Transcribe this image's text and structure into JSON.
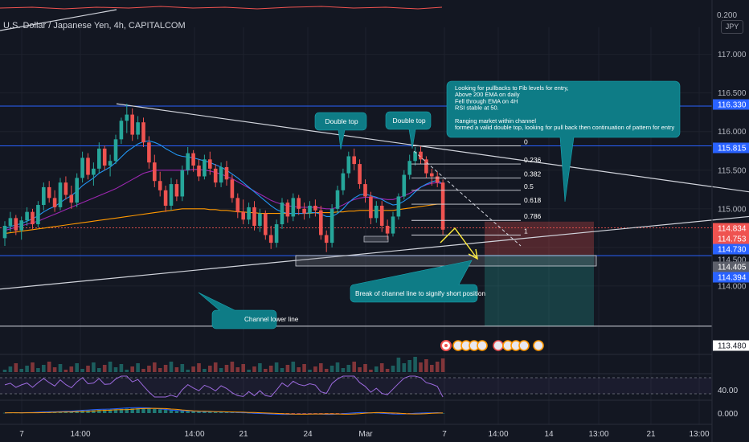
{
  "header": {
    "title": "U.S. Dollar / Japanese Yen, 4h, CAPITALCOM",
    "currency": "JPY"
  },
  "colors": {
    "background": "#131722",
    "up": "#26a69a",
    "down": "#ef5350",
    "annotation": "#0e7c86",
    "blue_line": "#2962ff",
    "ema_orange": "#ff9800",
    "ema_blue": "#2196f3",
    "ema_purple": "#9c27b0"
  },
  "chart_data": {
    "type": "candlestick",
    "symbol": "U.S. Dollar / Japanese Yen",
    "timeframe": "4h",
    "ylim": [
      113.25,
      117.35
    ],
    "price_axis_labels": [
      "117.000",
      "116.500",
      "116.000",
      "115.500",
      "115.000",
      "114.500",
      "114.000"
    ],
    "x_axis_labels": [
      "7",
      "14:00",
      "14:00",
      "21",
      "24",
      "Mar",
      "7",
      "14:00",
      "14",
      "13:00",
      "21",
      "13:00"
    ],
    "top_panel_label": "0.200",
    "rsi_axis_label": "40.00",
    "macd_axis_label": "0.000",
    "price_badges": [
      {
        "value": "116.330",
        "style": "blue"
      },
      {
        "value": "115.815",
        "style": "blue"
      },
      {
        "value": "114.834",
        "style": "red"
      },
      {
        "value": "114.753",
        "style": "red"
      },
      {
        "value": "114.730",
        "style": "blue"
      },
      {
        "value": "114.500",
        "style": "plain"
      },
      {
        "value": "114.405",
        "style": "gray"
      },
      {
        "value": "114.394",
        "style": "blue"
      },
      {
        "value": "113.480",
        "style": "white"
      }
    ],
    "horizontal_levels": [
      116.33,
      115.815,
      114.394,
      113.48
    ],
    "fib_levels": [
      {
        "label": "0",
        "value": 115.815
      },
      {
        "label": "0.236",
        "value": 115.58
      },
      {
        "label": "0.382",
        "value": 115.4
      },
      {
        "label": "0.5",
        "value": 115.24
      },
      {
        "label": "0.618",
        "value": 115.06
      },
      {
        "label": "0.786",
        "value": 114.85
      },
      {
        "label": "1",
        "value": 114.66
      }
    ],
    "trendlines": [
      {
        "name": "channel-upper",
        "from": [
          145,
          116.36
        ],
        "to": [
          932,
          115.22
        ]
      },
      {
        "name": "channel-lower",
        "from": [
          0,
          113.96
        ],
        "to": [
          932,
          114.9
        ]
      }
    ],
    "position": {
      "entry": 114.405,
      "stop": 114.834,
      "target": 113.48
    },
    "annotations": [
      {
        "name": "double-top-1",
        "text": "Double top"
      },
      {
        "name": "double-top-2",
        "text": "Double top"
      },
      {
        "name": "analysis-note",
        "lines": [
          "Looking for pullbacks to Fib levels for entry,",
          "Above 200 EMA on daily",
          "Fell through EMA on 4H",
          "RSI stable at 50.",
          "",
          "Ranging market within channel",
          "formed a valid double top, looking for pull back then continuation of pattern for entry"
        ]
      },
      {
        "name": "break-note",
        "text": "Break of channel line to signify short position"
      },
      {
        "name": "channel-lower-note",
        "text": "Channel lower line"
      }
    ],
    "candles": [
      [
        114.62,
        114.84,
        114.52,
        114.78
      ],
      [
        114.78,
        114.96,
        114.7,
        114.88
      ],
      [
        114.88,
        114.92,
        114.66,
        114.72
      ],
      [
        114.72,
        114.9,
        114.6,
        114.85
      ],
      [
        114.85,
        115.02,
        114.78,
        114.96
      ],
      [
        114.96,
        115.0,
        114.74,
        114.8
      ],
      [
        114.8,
        115.1,
        114.76,
        115.05
      ],
      [
        115.05,
        115.34,
        114.98,
        115.28
      ],
      [
        115.28,
        115.36,
        115.08,
        115.14
      ],
      [
        115.14,
        115.24,
        114.96,
        115.02
      ],
      [
        115.02,
        115.4,
        114.98,
        115.34
      ],
      [
        115.34,
        115.42,
        115.12,
        115.18
      ],
      [
        115.18,
        115.3,
        115.0,
        115.08
      ],
      [
        115.08,
        115.46,
        115.02,
        115.4
      ],
      [
        115.4,
        115.74,
        115.34,
        115.66
      ],
      [
        115.66,
        115.72,
        115.38,
        115.44
      ],
      [
        115.44,
        115.6,
        115.3,
        115.52
      ],
      [
        115.52,
        115.86,
        115.46,
        115.78
      ],
      [
        115.78,
        115.82,
        115.5,
        115.56
      ],
      [
        115.56,
        115.7,
        115.42,
        115.62
      ],
      [
        115.62,
        115.96,
        115.58,
        115.9
      ],
      [
        115.9,
        116.18,
        115.84,
        116.14
      ],
      [
        116.14,
        116.36,
        115.98,
        116.22
      ],
      [
        116.22,
        116.3,
        115.88,
        115.96
      ],
      [
        115.96,
        116.2,
        115.9,
        116.12
      ],
      [
        116.12,
        116.18,
        115.8,
        115.86
      ],
      [
        115.86,
        115.94,
        115.52,
        115.6
      ],
      [
        115.6,
        115.7,
        115.28,
        115.36
      ],
      [
        115.36,
        115.48,
        115.16,
        115.24
      ],
      [
        115.24,
        115.3,
        114.96,
        115.04
      ],
      [
        115.04,
        115.4,
        114.98,
        115.32
      ],
      [
        115.32,
        115.38,
        115.1,
        115.16
      ],
      [
        115.16,
        115.56,
        115.1,
        115.5
      ],
      [
        115.5,
        115.8,
        115.44,
        115.72
      ],
      [
        115.72,
        115.76,
        115.48,
        115.56
      ],
      [
        115.56,
        115.64,
        115.36,
        115.42
      ],
      [
        115.42,
        115.7,
        115.38,
        115.64
      ],
      [
        115.64,
        115.74,
        115.44,
        115.52
      ],
      [
        115.52,
        115.58,
        115.28,
        115.34
      ],
      [
        115.34,
        115.6,
        115.28,
        115.54
      ],
      [
        115.54,
        115.62,
        115.3,
        115.38
      ],
      [
        115.38,
        115.44,
        115.08,
        115.14
      ],
      [
        115.14,
        115.2,
        114.88,
        114.96
      ],
      [
        114.96,
        115.12,
        114.8,
        114.86
      ],
      [
        114.86,
        115.08,
        114.8,
        115.02
      ],
      [
        115.02,
        115.1,
        114.72,
        114.78
      ],
      [
        114.78,
        115.0,
        114.7,
        114.94
      ],
      [
        114.94,
        114.98,
        114.6,
        114.66
      ],
      [
        114.66,
        114.78,
        114.48,
        114.56
      ],
      [
        114.56,
        114.86,
        114.5,
        114.8
      ],
      [
        114.8,
        115.14,
        114.74,
        115.08
      ],
      [
        115.08,
        115.12,
        114.82,
        114.9
      ],
      [
        114.9,
        115.2,
        114.84,
        115.14
      ],
      [
        115.14,
        115.18,
        114.92,
        115.0
      ],
      [
        115.0,
        115.08,
        114.86,
        114.94
      ],
      [
        114.94,
        115.1,
        114.88,
        115.04
      ],
      [
        115.04,
        115.12,
        114.9,
        114.98
      ],
      [
        114.98,
        115.04,
        114.6,
        114.66
      ],
      [
        114.66,
        114.72,
        114.44,
        114.56
      ],
      [
        114.56,
        115.06,
        114.5,
        115.0
      ],
      [
        115.0,
        115.3,
        114.94,
        115.24
      ],
      [
        115.24,
        115.52,
        115.18,
        115.46
      ],
      [
        115.46,
        115.74,
        115.4,
        115.68
      ],
      [
        115.68,
        115.78,
        115.5,
        115.58
      ],
      [
        115.58,
        115.64,
        115.26,
        115.32
      ],
      [
        115.32,
        115.38,
        115.08,
        115.16
      ],
      [
        115.16,
        115.22,
        114.8,
        114.88
      ],
      [
        114.88,
        115.1,
        114.82,
        115.04
      ],
      [
        115.04,
        115.1,
        114.7,
        114.78
      ],
      [
        114.78,
        114.86,
        114.6,
        114.68
      ],
      [
        114.68,
        114.96,
        114.64,
        114.9
      ],
      [
        114.9,
        115.2,
        114.86,
        115.16
      ],
      [
        115.16,
        115.5,
        115.12,
        115.44
      ],
      [
        115.44,
        115.7,
        115.38,
        115.62
      ],
      [
        115.62,
        115.8,
        115.56,
        115.74
      ],
      [
        115.74,
        115.815,
        115.58,
        115.64
      ],
      [
        115.64,
        115.68,
        115.4,
        115.46
      ],
      [
        115.46,
        115.52,
        115.3,
        115.42
      ],
      [
        115.42,
        115.48,
        115.28,
        115.34
      ],
      [
        115.34,
        115.38,
        114.66,
        114.73
      ]
    ],
    "ema_200": [
      114.68,
      114.69,
      114.7,
      114.71,
      114.72,
      114.73,
      114.74,
      114.75,
      114.76,
      114.77,
      114.78,
      114.79,
      114.8,
      114.81,
      114.82,
      114.83,
      114.84,
      114.85,
      114.86,
      114.87,
      114.88,
      114.89,
      114.9,
      114.91,
      114.92,
      114.93,
      114.94,
      114.95,
      114.96,
      114.97,
      114.98,
      114.99,
      115.0,
      115.0,
      115.0,
      115.0,
      115.0,
      114.99,
      114.99,
      114.98,
      114.98,
      114.97,
      114.96,
      114.96,
      114.95,
      114.95,
      114.94,
      114.94,
      114.94,
      114.94,
      114.94,
      114.94,
      114.94,
      114.94,
      114.94,
      114.94,
      114.95,
      114.95,
      114.95,
      114.95,
      114.96,
      114.96,
      114.97,
      114.97,
      114.98,
      114.98,
      114.98,
      114.98,
      114.98,
      114.98,
      114.98,
      114.99,
      115.0,
      115.01,
      115.02,
      115.03,
      115.04,
      115.05,
      115.06,
      115.06
    ],
    "ema_50": [
      114.72,
      114.74,
      114.76,
      114.78,
      114.8,
      114.82,
      114.84,
      114.87,
      114.9,
      114.93,
      114.96,
      114.99,
      115.02,
      115.05,
      115.08,
      115.11,
      115.14,
      115.17,
      115.2,
      115.23,
      115.26,
      115.3,
      115.34,
      115.38,
      115.42,
      115.46,
      115.48,
      115.5,
      115.5,
      115.5,
      115.5,
      115.5,
      115.5,
      115.5,
      115.51,
      115.51,
      115.5,
      115.49,
      115.47,
      115.45,
      115.42,
      115.39,
      115.35,
      115.31,
      115.27,
      115.23,
      115.19,
      115.15,
      115.11,
      115.08,
      115.06,
      115.04,
      115.03,
      115.02,
      115.02,
      115.02,
      115.02,
      115.01,
      115.0,
      115.0,
      115.02,
      115.05,
      115.09,
      115.12,
      115.14,
      115.15,
      115.15,
      115.14,
      115.13,
      115.12,
      115.12,
      115.14,
      115.17,
      115.2,
      115.24,
      115.28,
      115.31,
      115.33,
      115.34,
      115.32
    ],
    "ema_20": [
      114.74,
      114.77,
      114.79,
      114.81,
      114.84,
      114.87,
      114.91,
      114.96,
      115.0,
      115.03,
      115.08,
      115.13,
      115.17,
      115.23,
      115.3,
      115.35,
      115.4,
      115.46,
      115.5,
      115.54,
      115.6,
      115.67,
      115.74,
      115.79,
      115.84,
      115.87,
      115.88,
      115.86,
      115.83,
      115.78,
      115.74,
      115.7,
      115.68,
      115.67,
      115.66,
      115.64,
      115.62,
      115.6,
      115.57,
      115.54,
      115.5,
      115.45,
      115.4,
      115.34,
      115.28,
      115.22,
      115.16,
      115.1,
      115.04,
      114.99,
      114.96,
      114.94,
      114.94,
      114.94,
      114.94,
      114.95,
      114.95,
      114.93,
      114.9,
      114.9,
      114.94,
      115.0,
      115.08,
      115.14,
      115.18,
      115.19,
      115.17,
      115.15,
      115.12,
      115.08,
      115.05,
      115.06,
      115.1,
      115.15,
      115.22,
      115.28,
      115.32,
      115.35,
      115.37,
      115.32
    ]
  }
}
